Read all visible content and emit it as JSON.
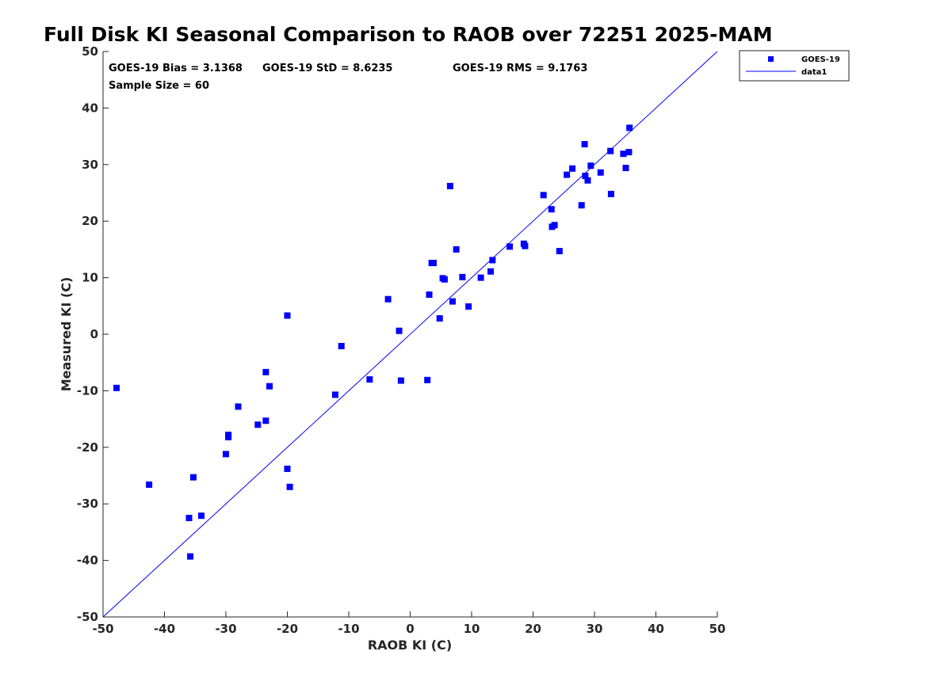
{
  "chart_data": {
    "type": "scatter",
    "title": "Full Disk KI Seasonal Comparison to RAOB over 72251 2025-MAM",
    "xlabel": "RAOB KI (C)",
    "ylabel": "Measured KI (C)",
    "xlim": [
      -50,
      50
    ],
    "ylim": [
      -50,
      50
    ],
    "xticks": [
      "-50",
      "-40",
      "-30",
      "-20",
      "-10",
      "0",
      "10",
      "20",
      "30",
      "40",
      "50"
    ],
    "yticks": [
      "-50",
      "-40",
      "-30",
      "-20",
      "-10",
      "0",
      "10",
      "20",
      "30",
      "40",
      "50"
    ],
    "grid": false,
    "legend_position": "outside top-right",
    "annotations": {
      "bias": "GOES-19 Bias = 3.1368",
      "std": "GOES-19 StD = 8.6235",
      "rms": "GOES-19 RMS = 9.1763",
      "sample": "Sample Size = 60"
    },
    "series": [
      {
        "name": "GOES-19",
        "marker": "square",
        "color": "#0000ff",
        "points": [
          [
            -47.8,
            -9.5
          ],
          [
            -42.5,
            -26.6
          ],
          [
            -36.0,
            -32.5
          ],
          [
            -35.8,
            -39.3
          ],
          [
            -35.3,
            -25.3
          ],
          [
            -34.0,
            -32.1
          ],
          [
            -30.0,
            -21.2
          ],
          [
            -29.6,
            -18.2
          ],
          [
            -29.6,
            -17.8
          ],
          [
            -28.0,
            -12.8
          ],
          [
            -24.8,
            -16.0
          ],
          [
            -23.5,
            -15.3
          ],
          [
            -23.5,
            -6.7
          ],
          [
            -22.9,
            -9.2
          ],
          [
            -20.0,
            -23.8
          ],
          [
            -20.0,
            3.3
          ],
          [
            -19.6,
            -27.0
          ],
          [
            -12.2,
            -10.7
          ],
          [
            -11.2,
            -2.1
          ],
          [
            -6.6,
            -8.0
          ],
          [
            -3.6,
            6.2
          ],
          [
            -1.8,
            0.6
          ],
          [
            -1.5,
            -8.2
          ],
          [
            2.8,
            -8.1
          ],
          [
            3.1,
            7.0
          ],
          [
            3.5,
            12.6
          ],
          [
            3.8,
            12.6
          ],
          [
            4.8,
            2.8
          ],
          [
            5.3,
            9.9
          ],
          [
            5.6,
            9.7
          ],
          [
            6.5,
            26.2
          ],
          [
            6.9,
            5.8
          ],
          [
            7.5,
            15.0
          ],
          [
            8.5,
            10.1
          ],
          [
            9.5,
            4.9
          ],
          [
            11.5,
            10.0
          ],
          [
            13.1,
            11.1
          ],
          [
            13.4,
            13.1
          ],
          [
            16.2,
            15.5
          ],
          [
            18.5,
            16.0
          ],
          [
            18.7,
            15.6
          ],
          [
            21.7,
            24.6
          ],
          [
            23.0,
            22.1
          ],
          [
            23.1,
            19.0
          ],
          [
            23.5,
            19.3
          ],
          [
            24.3,
            14.7
          ],
          [
            25.5,
            28.2
          ],
          [
            26.4,
            29.3
          ],
          [
            27.9,
            22.8
          ],
          [
            28.4,
            33.6
          ],
          [
            28.5,
            28.0
          ],
          [
            28.9,
            27.2
          ],
          [
            29.4,
            29.8
          ],
          [
            31.0,
            28.6
          ],
          [
            32.6,
            32.4
          ],
          [
            32.7,
            24.8
          ],
          [
            34.7,
            31.9
          ],
          [
            35.1,
            29.4
          ],
          [
            35.6,
            32.2
          ],
          [
            35.7,
            36.5
          ]
        ]
      },
      {
        "name": "data1",
        "style": "line",
        "color": "#0000ff",
        "points": [
          [
            -50,
            -50
          ],
          [
            50,
            50
          ]
        ]
      }
    ]
  }
}
